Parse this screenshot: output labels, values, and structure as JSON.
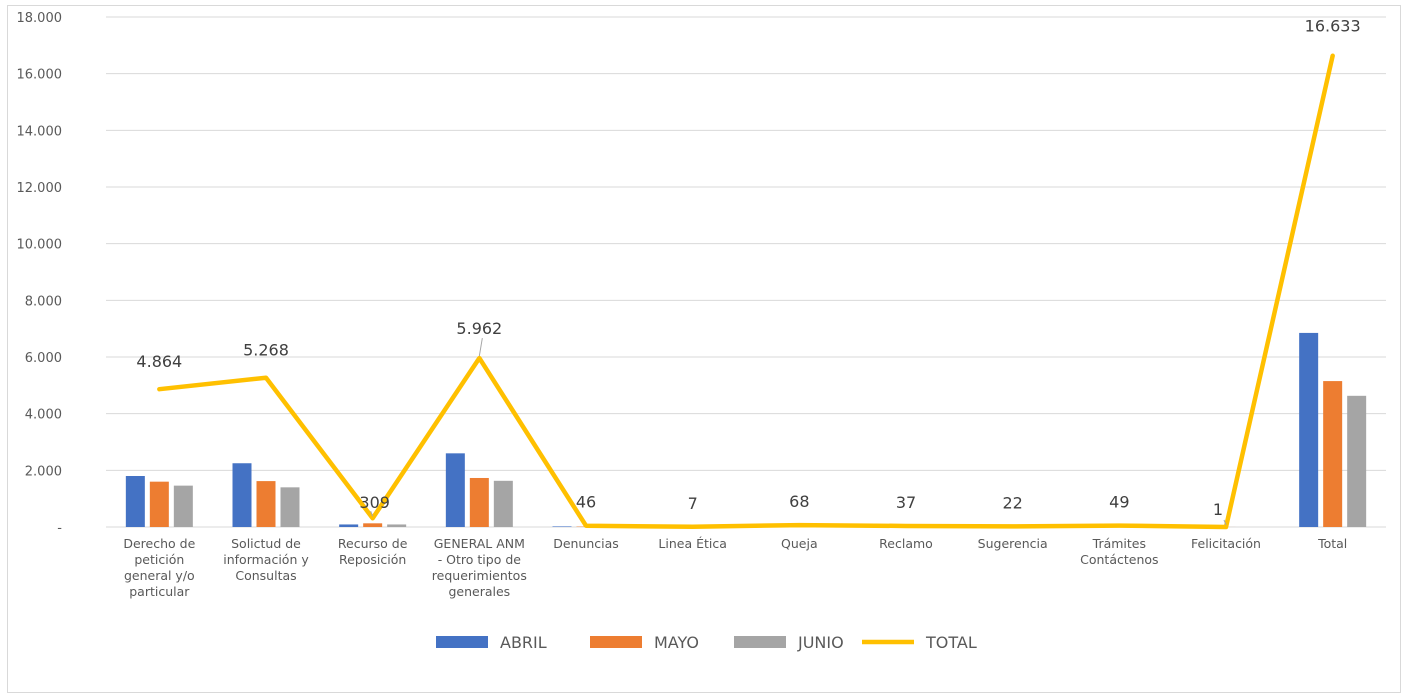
{
  "chart_data": {
    "type": "bar",
    "title": "",
    "xlabel": "",
    "ylabel": "",
    "ylim": [
      0,
      18000
    ],
    "yticks": [
      "-",
      "2.000",
      "4.000",
      "6.000",
      "8.000",
      "10.000",
      "12.000",
      "14.000",
      "16.000",
      "18.000"
    ],
    "grid": true,
    "legend_position": "bottom",
    "categories": [
      "Derecho de petición general y/o particular",
      "Solictud de información y Consultas",
      "Recurso de Reposición",
      "GENERAL ANM - Otro tipo de requerimientos generales",
      "Denuncias",
      "Linea Ética",
      "Queja",
      "Reclamo",
      "Sugerencia",
      "Trámites Contáctenos",
      "Felicitación",
      "Total"
    ],
    "category_label_lines": [
      [
        "Derecho de",
        "petición",
        "general y/o",
        "particular"
      ],
      [
        "Solictud de",
        "información y",
        "Consultas"
      ],
      [
        "Recurso de",
        "Reposición"
      ],
      [
        "GENERAL ANM",
        "- Otro tipo de",
        "requerimientos",
        "generales"
      ],
      [
        "Denuncias"
      ],
      [
        "Linea Ética"
      ],
      [
        "Queja"
      ],
      [
        "Reclamo"
      ],
      [
        "Sugerencia"
      ],
      [
        "Trámites",
        "Contáctenos"
      ],
      [
        "Felicitación"
      ],
      [
        "Total"
      ]
    ],
    "series": [
      {
        "name": "ABRIL",
        "kind": "bar",
        "color": "#4472c4",
        "values": [
          1800,
          2250,
          90,
          2600,
          20,
          3,
          25,
          15,
          8,
          18,
          0,
          6850
        ]
      },
      {
        "name": "MAYO",
        "kind": "bar",
        "color": "#ed7d31",
        "values": [
          1600,
          1620,
          130,
          1730,
          14,
          2,
          22,
          12,
          7,
          16,
          1,
          5150
        ]
      },
      {
        "name": "JUNIO",
        "kind": "bar",
        "color": "#a5a5a5",
        "values": [
          1460,
          1400,
          90,
          1630,
          12,
          2,
          21,
          10,
          7,
          15,
          0,
          4630
        ]
      },
      {
        "name": "TOTAL",
        "kind": "line",
        "color": "#ffc000",
        "values": [
          4864,
          5268,
          309,
          5962,
          46,
          7,
          68,
          37,
          22,
          49,
          1,
          16633
        ]
      }
    ],
    "data_labels": [
      "4.864",
      "5.268",
      "309",
      "5.962",
      "46",
      "7",
      "68",
      "37",
      "22",
      "49",
      "1",
      "16.633"
    ]
  }
}
